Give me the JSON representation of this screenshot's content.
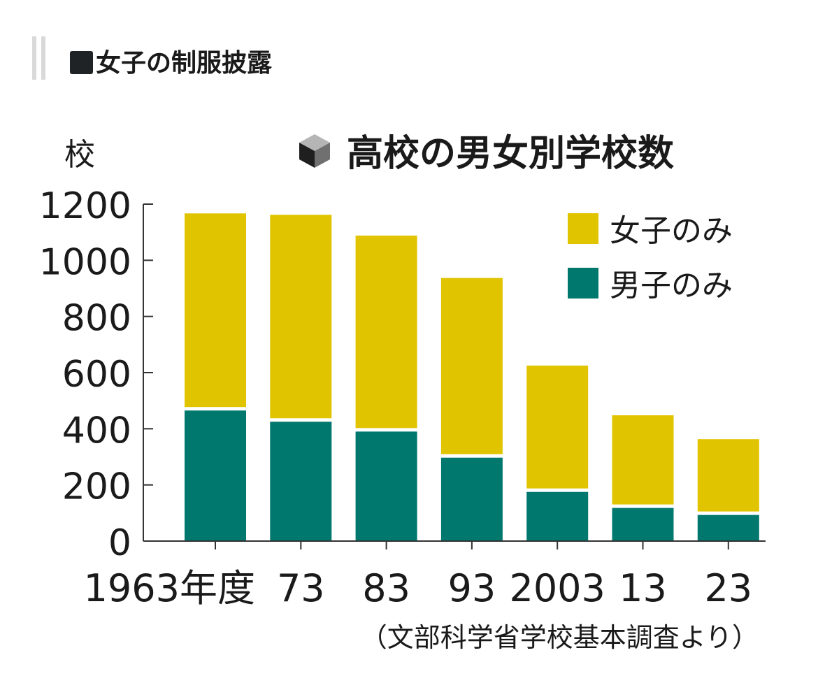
{
  "header": {
    "title": "女子の制服披露"
  },
  "chart_data": {
    "type": "bar",
    "stacked": true,
    "title": "高校の男女別学校数",
    "ylabel": "校",
    "xlabel": "",
    "ylim": [
      0,
      1200
    ],
    "yticks": [
      "0",
      "200",
      "400",
      "600",
      "800",
      "1000",
      "1200"
    ],
    "categories": [
      "1963年度",
      "73",
      "83",
      "93",
      "2003",
      "13",
      "23"
    ],
    "series": [
      {
        "name": "男子のみ",
        "color": "#00786e",
        "values": [
          465,
          425,
          390,
          297,
          175,
          118,
          93
        ]
      },
      {
        "name": "女子のみ",
        "color": "#e1c400",
        "values": [
          702,
          737,
          698,
          640,
          450,
          330,
          270
        ]
      }
    ],
    "legend": [
      "女子のみ",
      "男子のみ"
    ],
    "source": "（文部科学省学校基本調査より）"
  }
}
